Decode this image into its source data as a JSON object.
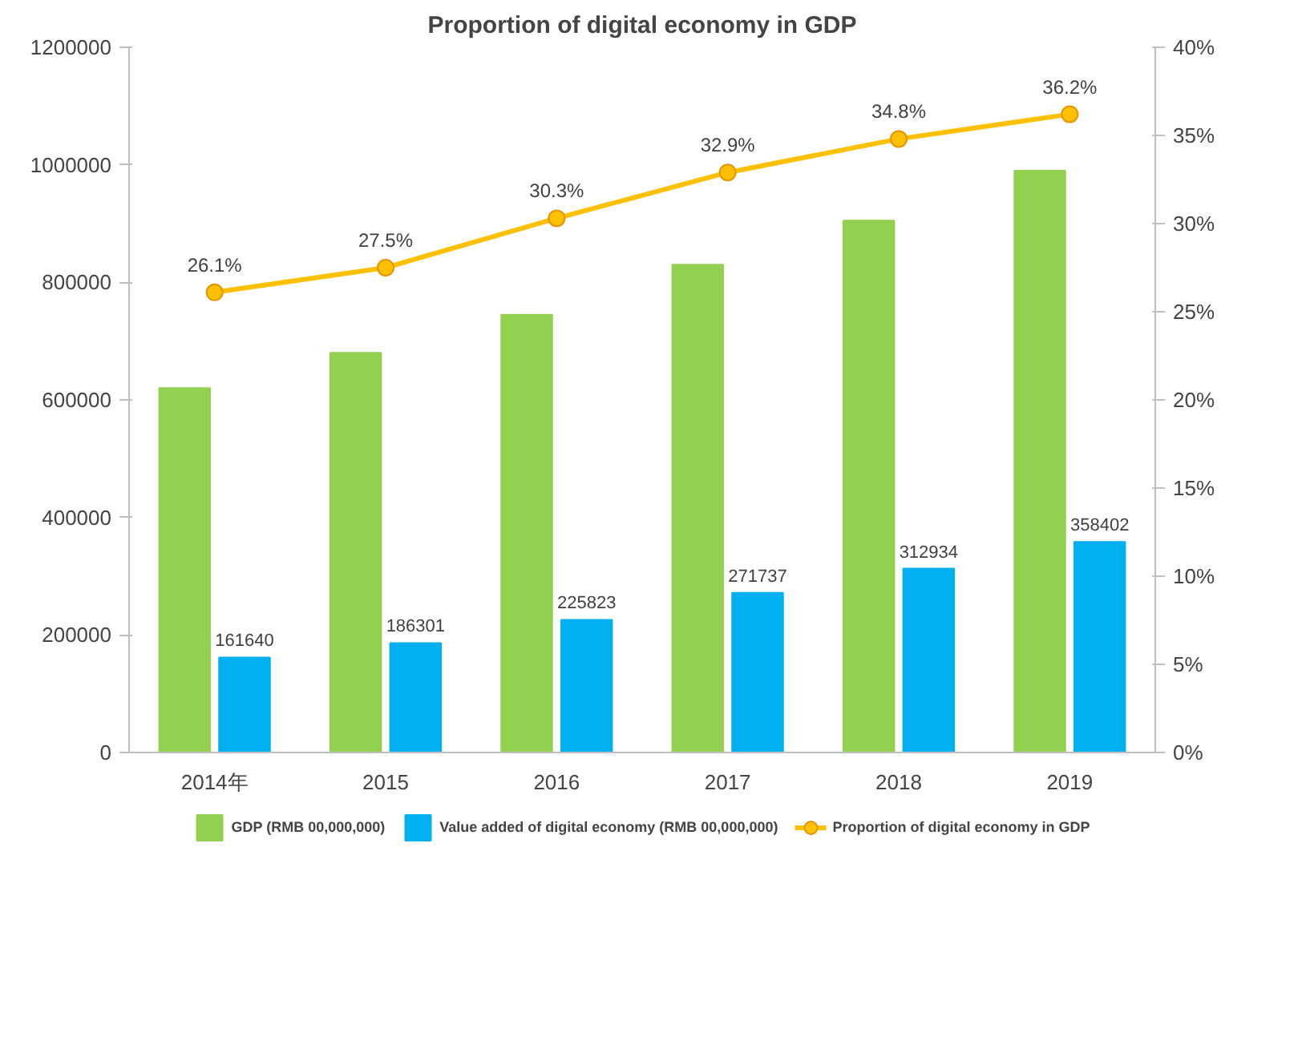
{
  "chart_data": {
    "type": "bar",
    "title": "Proportion of digital economy in GDP",
    "categories": [
      "2014年",
      "2015",
      "2016",
      "2017",
      "2018",
      "2019"
    ],
    "series": [
      {
        "name": "GDP (RMB 00,000,000)",
        "color": "#92d050",
        "values": [
          620000,
          680000,
          745000,
          830000,
          905000,
          990000
        ]
      },
      {
        "name": "Value added of digital economy (RMB 00,000,000)",
        "color": "#00b0f0",
        "values": [
          161640,
          186301,
          225823,
          271737,
          312934,
          358402
        ],
        "value_labels": [
          "161640",
          "186301",
          "225823",
          "271737",
          "312934",
          "358402"
        ]
      },
      {
        "name": "Proportion of digital economy in GDP",
        "type": "line",
        "axis": "y2",
        "color": "#ffc000",
        "marker": "circle",
        "values": [
          26.1,
          27.5,
          30.3,
          32.9,
          34.8,
          36.2
        ],
        "value_labels": [
          "26.1%",
          "27.5%",
          "30.3%",
          "32.9%",
          "34.8%",
          "36.2%"
        ]
      }
    ],
    "ylim": [
      0,
      1200000
    ],
    "yticks": [
      0,
      200000,
      400000,
      600000,
      800000,
      1000000,
      1200000
    ],
    "y2lim": [
      0,
      40
    ],
    "y2ticks": [
      {
        "value": 0,
        "label": "0%"
      },
      {
        "value": 5,
        "label": "5%"
      },
      {
        "value": 10,
        "label": "10%"
      },
      {
        "value": 15,
        "label": "15%"
      },
      {
        "value": 20,
        "label": "20%"
      },
      {
        "value": 25,
        "label": "25%"
      },
      {
        "value": 30,
        "label": "30%"
      },
      {
        "value": 35,
        "label": "35%"
      },
      {
        "value": 40,
        "label": "40%"
      }
    ],
    "grid": false,
    "legend": "bottom"
  }
}
